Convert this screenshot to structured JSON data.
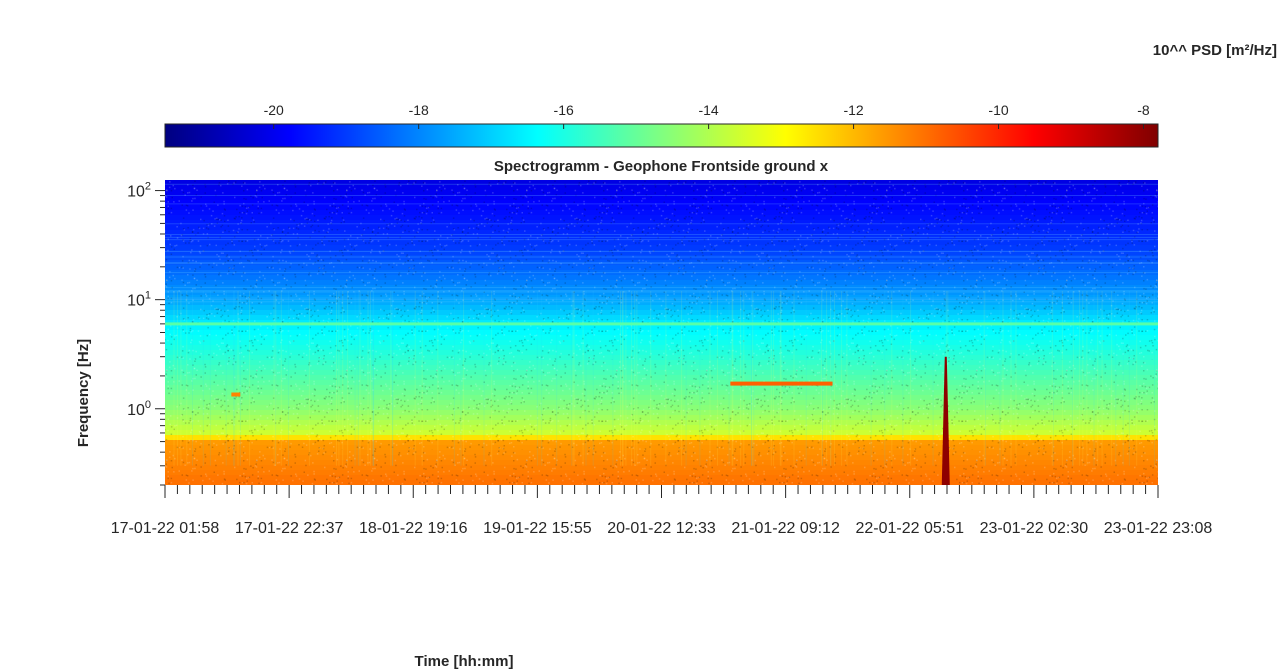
{
  "chart_data": {
    "type": "heatmap",
    "title": "Spectrogramm - Geophone Frontside ground x",
    "xlabel": "Time [hh:mm]",
    "ylabel": "Frequency [Hz]",
    "colorbar": {
      "label": "10^^ PSD [m²/Hz]",
      "range": [
        -21.5,
        -7.8
      ],
      "ticks": [
        -20,
        -18,
        -16,
        -14,
        -12,
        -10,
        -8
      ],
      "tick_labels": [
        "-20",
        "-18",
        "-16",
        "-14",
        "-12",
        "-10",
        "-8"
      ],
      "colormap": "jet",
      "location": "top"
    },
    "x_tick_labels": [
      "17-01-22 01:58",
      "17-01-22 22:37",
      "18-01-22 19:16",
      "19-01-22 15:55",
      "20-01-22 12:33",
      "21-01-22 09:12",
      "22-01-22 05:51",
      "23-01-22 02:30",
      "23-01-22 23:08"
    ],
    "x_minor_per_major": 10,
    "y_scale": "log",
    "y_range_hz": [
      0.2,
      125
    ],
    "y_tick_values": [
      1,
      10,
      100
    ],
    "y_tick_labels": [
      {
        "base": "10",
        "exp": "0"
      },
      {
        "base": "10",
        "exp": "1"
      },
      {
        "base": "10",
        "exp": "2"
      }
    ],
    "psd_profile": [
      {
        "freq_hz": 0.2,
        "log10_psd": -11.0
      },
      {
        "freq_hz": 0.5,
        "log10_psd": -11.6
      },
      {
        "freq_hz": 0.6,
        "log10_psd": -13.6
      },
      {
        "freq_hz": 1.0,
        "log10_psd": -14.5
      },
      {
        "freq_hz": 3.0,
        "log10_psd": -15.8
      },
      {
        "freq_hz": 6.0,
        "log10_psd": -16.6
      },
      {
        "freq_hz": 10.0,
        "log10_psd": -17.6
      },
      {
        "freq_hz": 30.0,
        "log10_psd": -19.0
      },
      {
        "freq_hz": 100.0,
        "log10_psd": -20.0
      },
      {
        "freq_hz": 125.0,
        "log10_psd": -20.2
      }
    ],
    "features": [
      {
        "kind": "tonal line",
        "freq_hz": 6.0,
        "from": "17-01-22 01:58",
        "to": "23-01-22 23:08",
        "log10_psd": -15.2
      },
      {
        "kind": "tonal line",
        "freq_hz": 1.7,
        "from": "21-01-22 00:00",
        "to": "21-01-22 17:00",
        "log10_psd": -10.8
      },
      {
        "kind": "short tone",
        "freq_hz": 1.35,
        "from": "17-01-22 13:00",
        "to": "17-01-22 14:30",
        "log10_psd": -11.3
      },
      {
        "kind": "broadband event",
        "time": "22-01-22 11:50",
        "freq_range_hz": [
          0.2,
          3.0
        ],
        "log10_psd": -8.0
      }
    ]
  }
}
